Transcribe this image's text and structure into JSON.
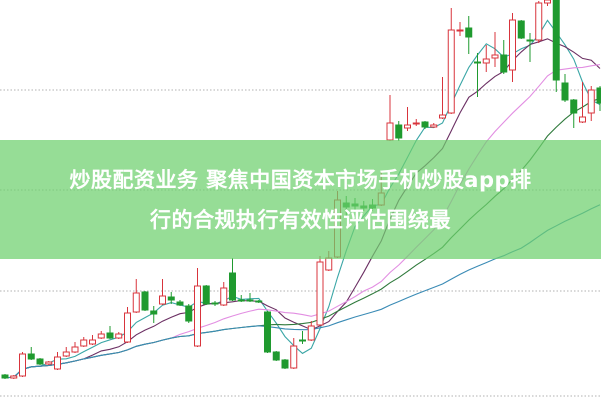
{
  "title": {
    "line1": "炒股配资业务 聚焦中国资本市场手机炒股app排",
    "line2": "行的合规执行有效性评估围绕最"
  },
  "colors": {
    "up": "#d8343c",
    "down": "#1f9a2f",
    "banner": "#93df93",
    "grid": "#b0b0b0",
    "ma_lines": [
      "#3aa6a6",
      "#6b2f63",
      "#e28ee2",
      "#2f7a3c",
      "#3a8bb5"
    ]
  },
  "chart_data": {
    "type": "candlestick",
    "title": "",
    "xlabel": "",
    "ylabel": "",
    "ylim": [
      0,
      40.1
    ],
    "grid": "horizontal dotted",
    "legend": "none",
    "moving_averages": [
      5,
      10,
      20,
      30,
      60
    ],
    "candles": [
      [
        2.6,
        2.3,
        2.7,
        2.2
      ],
      [
        2.3,
        2.5,
        2.6,
        2.2
      ],
      [
        2.5,
        4.7,
        4.9,
        2.4
      ],
      [
        4.7,
        4.2,
        5.4,
        4.1
      ],
      [
        4.2,
        3.7,
        4.3,
        3.6
      ],
      [
        3.7,
        3.9,
        4.0,
        3.6
      ],
      [
        3.2,
        4.4,
        4.9,
        3.1
      ],
      [
        4.5,
        4.9,
        5.4,
        4.4
      ],
      [
        4.9,
        5.4,
        5.9,
        4.8
      ],
      [
        5.5,
        6.1,
        6.4,
        5.4
      ],
      [
        5.7,
        6.1,
        6.6,
        5.6
      ],
      [
        6.3,
        6.7,
        7.0,
        6.2
      ],
      [
        6.8,
        6.3,
        7.5,
        6.2
      ],
      [
        6.3,
        6.7,
        6.9,
        6.2
      ],
      [
        5.9,
        8.8,
        9.4,
        5.8
      ],
      [
        8.9,
        10.8,
        12.2,
        8.8
      ],
      [
        10.9,
        9.1,
        11.0,
        9.0
      ],
      [
        9.0,
        8.7,
        9.5,
        7.8
      ],
      [
        9.7,
        10.5,
        12.2,
        9.6
      ],
      [
        10.4,
        10.1,
        10.9,
        9.7
      ],
      [
        9.9,
        9.6,
        10.1,
        9.5
      ],
      [
        9.5,
        8.0,
        9.7,
        7.8
      ],
      [
        5.5,
        11.5,
        13.3,
        5.4
      ],
      [
        11.5,
        9.7,
        11.6,
        9.6
      ],
      [
        9.8,
        9.7,
        10.0,
        9.5
      ],
      [
        9.6,
        11.3,
        11.9,
        9.5
      ],
      [
        12.8,
        10.1,
        14.3,
        10.0
      ],
      [
        10.1,
        10.0,
        10.6,
        9.9
      ],
      [
        10.1,
        10.0,
        10.8,
        9.9
      ],
      [
        10.0,
        9.9,
        10.1,
        9.8
      ],
      [
        8.9,
        4.9,
        9.0,
        4.8
      ],
      [
        4.9,
        4.1,
        5.0,
        4.0
      ],
      [
        4.1,
        3.3,
        4.2,
        3.2
      ],
      [
        3.3,
        5.5,
        6.3,
        3.2
      ],
      [
        6.1,
        6.0,
        7.0,
        5.7
      ],
      [
        6.1,
        7.5,
        8.0,
        6.0
      ],
      [
        7.6,
        13.9,
        14.5,
        7.5
      ],
      [
        13.1,
        14.3,
        15.0,
        13.0
      ],
      [
        14.4,
        20.1,
        21.0,
        14.3
      ],
      [
        19.8,
        19.4,
        20.5,
        18.5
      ],
      [
        19.7,
        19.5,
        20.3,
        19.0
      ],
      [
        19.5,
        19.3,
        20.0,
        19.0
      ],
      [
        19.6,
        19.3,
        20.2,
        19.0
      ],
      [
        19.6,
        20.8,
        23.0,
        19.5
      ],
      [
        26.1,
        27.8,
        30.6,
        26.0
      ],
      [
        27.6,
        26.3,
        28.0,
        26.0
      ],
      [
        27.3,
        27.6,
        29.4,
        27.0
      ],
      [
        27.7,
        27.8,
        28.2,
        27.5
      ],
      [
        27.9,
        27.4,
        28.0,
        27.2
      ],
      [
        27.4,
        27.6,
        27.8,
        27.3
      ],
      [
        28.3,
        28.6,
        32.4,
        28.2
      ],
      [
        28.8,
        37.1,
        39.3,
        28.7
      ],
      [
        37.0,
        37.1,
        37.9,
        36.5
      ],
      [
        37.3,
        36.4,
        38.5,
        34.7
      ],
      [
        33.9,
        33.8,
        34.8,
        30.4
      ],
      [
        33.8,
        34.2,
        35.6,
        32.9
      ],
      [
        34.3,
        34.6,
        36.9,
        33.4
      ],
      [
        34.6,
        32.9,
        36.1,
        32.7
      ],
      [
        33.1,
        38.1,
        38.8,
        31.9
      ],
      [
        38.0,
        36.3,
        38.1,
        36.2
      ],
      [
        36.1,
        36.0,
        36.8,
        33.9
      ],
      [
        36.1,
        39.8,
        40.0,
        35.8
      ],
      [
        39.8,
        40.1,
        40.1,
        39.5
      ],
      [
        40.1,
        32.1,
        40.1,
        30.9
      ],
      [
        31.8,
        30.1,
        32.7,
        29.9
      ],
      [
        30.1,
        28.8,
        30.2,
        27.3
      ],
      [
        27.9,
        28.4,
        31.9,
        27.8
      ],
      [
        28.8,
        31.1,
        31.5,
        28.0
      ],
      [
        31.3,
        29.8,
        31.5,
        29.0
      ]
    ],
    "gridlines": [
      0.5,
      11.0,
      21.1,
      31.1
    ]
  }
}
